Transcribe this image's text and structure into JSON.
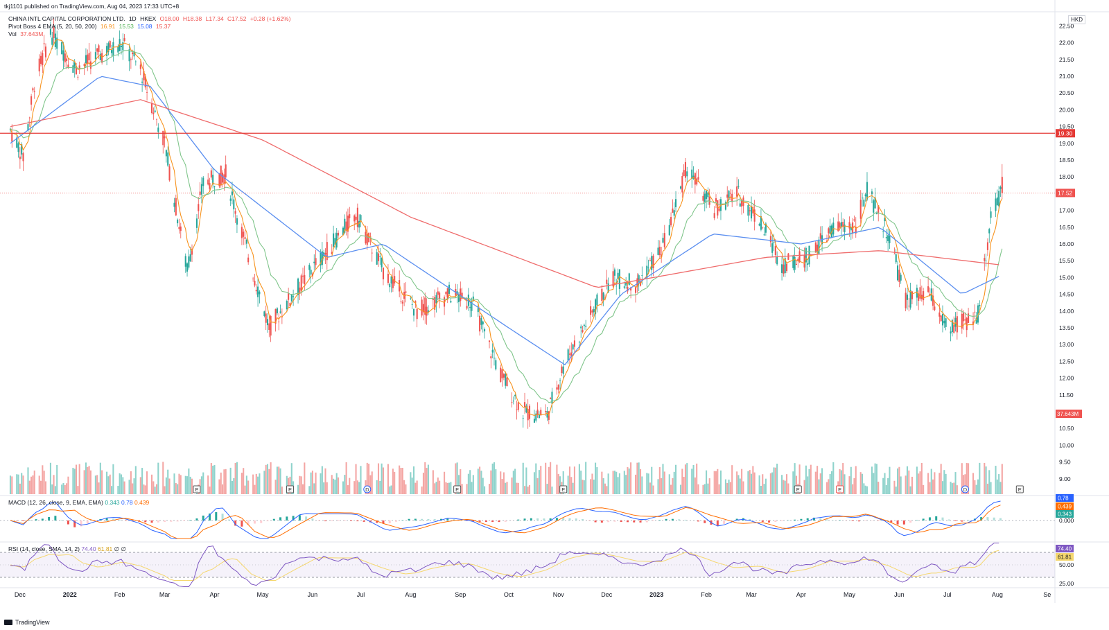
{
  "publisher_line": "tkj1101 published on TradingView.com, Aug 04, 2023 17:33 UTC+8",
  "symbol": {
    "name": "CHINA INTL CAPITAL CORPORATION LTD.",
    "interval": "1D",
    "exchange": "HKEX",
    "open": "O18.00",
    "high": "H18.38",
    "low": "L17.34",
    "close": "C17.52",
    "change": "+0.28 (+1.62%)",
    "currency": "HKD"
  },
  "ema_legend": {
    "label": "Pivot Boss 4 EMA (5, 20, 50, 200)",
    "v5": "16.91",
    "v20": "15.53",
    "v50": "15.08",
    "v200": "15.37"
  },
  "vol_legend": {
    "label": "Vol",
    "value": "37.643M"
  },
  "macd_legend": {
    "label": "MACD (12, 26, close, 9, EMA, EMA)",
    "hist": "0.343",
    "macd": "0.78",
    "signal": "0.439"
  },
  "rsi_legend": {
    "label": "RSI (14, close, SMA, 14, 2)",
    "rsi": "74.40",
    "ma": "61.81",
    "extra": "∅ ∅"
  },
  "footer": "TradingView",
  "colors": {
    "up": "#26a69a",
    "down": "#ef5350",
    "ema5": "#f7931e",
    "ema20": "#7fc58a",
    "ema50": "#5b8ff0",
    "ema200": "#ef6c6c",
    "resistance": "#e53935",
    "macd": "#2962ff",
    "signal": "#ff6d00",
    "rsi": "#7e57c2",
    "rsi_ma": "#f5d76e"
  },
  "chart_data": {
    "type": "candlestick",
    "price_axis": {
      "ticks": [
        "22.50",
        "22.00",
        "21.50",
        "21.00",
        "20.50",
        "20.00",
        "19.50",
        "19.00",
        "18.50",
        "18.00",
        "17.50",
        "17.00",
        "16.50",
        "16.00",
        "15.50",
        "15.00",
        "14.50",
        "14.00",
        "13.50",
        "13.00",
        "12.50",
        "12.00",
        "11.50",
        "11.00",
        "10.50",
        "10.00",
        "9.50",
        "9.00"
      ],
      "range": [
        8.5,
        22.9
      ]
    },
    "time_axis": {
      "labels": [
        "Dec",
        "2022",
        "Feb",
        "Mar",
        "Apr",
        "May",
        "Jun",
        "Jul",
        "Aug",
        "Sep",
        "Oct",
        "Nov",
        "Dec",
        "2023",
        "Feb",
        "Mar",
        "Apr",
        "May",
        "Jun",
        "Jul",
        "Aug",
        "Se"
      ]
    },
    "resistance_level": "19.30",
    "last_price": "17.52",
    "last_volume": "37.643M",
    "macd_axis": {
      "ticks": [
        "0.000"
      ],
      "hist_label": "0.343",
      "macd_label": "0.78",
      "signal_label": "0.439"
    },
    "rsi_axis": {
      "ticks": [
        "50.00",
        "25.00"
      ],
      "rsi_label": "74.40",
      "ma_label": "61.81"
    },
    "event_markers": [
      "E",
      "E",
      "D",
      "E",
      "E",
      "E",
      "E",
      "D",
      "E"
    ],
    "price_anchors": [
      {
        "t": "2021-11-25",
        "p": 19.4
      },
      {
        "t": "2021-12-03",
        "p": 18.6
      },
      {
        "t": "2021-12-10",
        "p": 20.8
      },
      {
        "t": "2021-12-20",
        "p": 22.3
      },
      {
        "t": "2022-01-05",
        "p": 21.2
      },
      {
        "t": "2022-01-18",
        "p": 21.6
      },
      {
        "t": "2022-02-02",
        "p": 22.0
      },
      {
        "t": "2022-02-14",
        "p": 21.2
      },
      {
        "t": "2022-03-01",
        "p": 19.0
      },
      {
        "t": "2022-03-15",
        "p": 15.2
      },
      {
        "t": "2022-03-25",
        "p": 17.8
      },
      {
        "t": "2022-04-08",
        "p": 18.1
      },
      {
        "t": "2022-04-20",
        "p": 16.0
      },
      {
        "t": "2022-05-05",
        "p": 13.5
      },
      {
        "t": "2022-05-20",
        "p": 14.5
      },
      {
        "t": "2022-06-10",
        "p": 15.8
      },
      {
        "t": "2022-06-28",
        "p": 16.9
      },
      {
        "t": "2022-07-15",
        "p": 15.2
      },
      {
        "t": "2022-08-05",
        "p": 14.0
      },
      {
        "t": "2022-08-25",
        "p": 14.5
      },
      {
        "t": "2022-09-08",
        "p": 14.3
      },
      {
        "t": "2022-09-25",
        "p": 12.2
      },
      {
        "t": "2022-10-10",
        "p": 11.0
      },
      {
        "t": "2022-10-25",
        "p": 10.9
      },
      {
        "t": "2022-11-05",
        "p": 12.5
      },
      {
        "t": "2022-11-20",
        "p": 13.8
      },
      {
        "t": "2022-12-05",
        "p": 15.0
      },
      {
        "t": "2022-12-20",
        "p": 14.8
      },
      {
        "t": "2023-01-05",
        "p": 15.9
      },
      {
        "t": "2023-01-20",
        "p": 18.3
      },
      {
        "t": "2023-02-05",
        "p": 17.0
      },
      {
        "t": "2023-02-20",
        "p": 17.5
      },
      {
        "t": "2023-03-05",
        "p": 16.8
      },
      {
        "t": "2023-03-20",
        "p": 15.4
      },
      {
        "t": "2023-04-05",
        "p": 15.6
      },
      {
        "t": "2023-04-20",
        "p": 16.4
      },
      {
        "t": "2023-05-05",
        "p": 16.6
      },
      {
        "t": "2023-05-12",
        "p": 17.6
      },
      {
        "t": "2023-05-25",
        "p": 16.3
      },
      {
        "t": "2023-06-05",
        "p": 14.3
      },
      {
        "t": "2023-06-20",
        "p": 14.5
      },
      {
        "t": "2023-07-01",
        "p": 13.4
      },
      {
        "t": "2023-07-20",
        "p": 13.9
      },
      {
        "t": "2023-07-28",
        "p": 16.8
      },
      {
        "t": "2023-08-04",
        "p": 17.52
      }
    ],
    "ema_anchors": {
      "ema200": [
        {
          "t": "2021-11-25",
          "p": 19.5
        },
        {
          "t": "2022-02-14",
          "p": 20.3
        },
        {
          "t": "2022-05-01",
          "p": 19.1
        },
        {
          "t": "2022-08-01",
          "p": 16.8
        },
        {
          "t": "2022-11-25",
          "p": 14.7
        },
        {
          "t": "2023-03-10",
          "p": 15.6
        },
        {
          "t": "2023-05-20",
          "p": 15.8
        },
        {
          "t": "2023-08-04",
          "p": 15.37
        }
      ],
      "ema50": [
        {
          "t": "2021-11-25",
          "p": 19.0
        },
        {
          "t": "2022-01-20",
          "p": 21.0
        },
        {
          "t": "2022-02-20",
          "p": 20.7
        },
        {
          "t": "2022-04-01",
          "p": 18.2
        },
        {
          "t": "2022-06-10",
          "p": 15.6
        },
        {
          "t": "2022-07-15",
          "p": 16.0
        },
        {
          "t": "2022-10-01",
          "p": 13.5
        },
        {
          "t": "2022-11-05",
          "p": 12.4
        },
        {
          "t": "2022-12-10",
          "p": 14.5
        },
        {
          "t": "2023-02-05",
          "p": 16.3
        },
        {
          "t": "2023-04-01",
          "p": 16.0
        },
        {
          "t": "2023-05-20",
          "p": 16.5
        },
        {
          "t": "2023-07-10",
          "p": 14.5
        },
        {
          "t": "2023-08-04",
          "p": 15.08
        }
      ]
    }
  }
}
